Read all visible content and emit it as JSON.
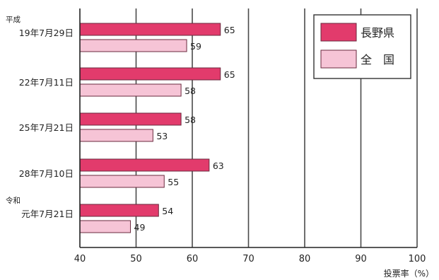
{
  "chart_data": {
    "type": "bar",
    "orientation": "horizontal",
    "xlabel": "投票率（%）",
    "xlim": [
      40,
      100
    ],
    "xticks": [
      "40",
      "50",
      "60",
      "70",
      "80",
      "90",
      "100"
    ],
    "grid": true,
    "legend_position": "top-right",
    "categories": [
      {
        "era": "平成",
        "date": "19年7月29日"
      },
      {
        "era": "",
        "date": "22年7月11日"
      },
      {
        "era": "",
        "date": "25年7月21日"
      },
      {
        "era": "",
        "date": "28年7月10日"
      },
      {
        "era": "令和",
        "date": "元年7月21日"
      }
    ],
    "series": [
      {
        "name": "長野県",
        "color": "#e23b6c",
        "values": [
          65,
          65,
          58,
          63,
          54
        ]
      },
      {
        "name": "全　国",
        "color": "#f6c4d6",
        "values": [
          59,
          58,
          53,
          55,
          49
        ]
      }
    ]
  }
}
